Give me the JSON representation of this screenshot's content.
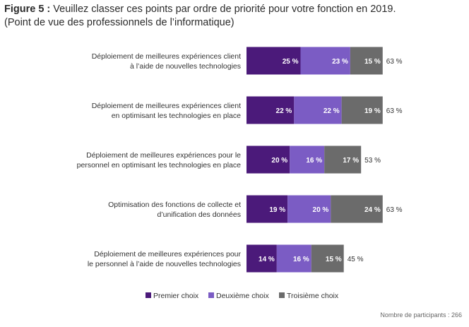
{
  "header": {
    "figure_label": "Figure 5 :",
    "title_rest": " Veuillez classer ces points par ordre de priorité pour votre fonction en 2019.",
    "subtitle": "(Point de vue des professionnels de l’informatique)"
  },
  "footer": {
    "note": "Nombre de participants : 266"
  },
  "chart_data": {
    "type": "bar",
    "orientation": "horizontal",
    "stacked": true,
    "categories": [
      [
        "Déploiement de meilleures expériences client",
        "à l’aide de nouvelles technologies"
      ],
      [
        "Déploiement de meilleures expériences client",
        "en optimisant les technologies en place"
      ],
      [
        "Déploiement de meilleures expériences pour le",
        "personnel en optimisant les technologies en place"
      ],
      [
        "Optimisation des fonctions de collecte et",
        "d’unification des données"
      ],
      [
        "Déploiement de meilleures expériences pour",
        "le personnel à l’aide de nouvelles technologies"
      ]
    ],
    "series": [
      {
        "name": "Premier choix",
        "color": "#4b1a7a",
        "values": [
          25,
          22,
          20,
          19,
          14
        ]
      },
      {
        "name": "Deuxième choix",
        "color": "#7b5cc4",
        "values": [
          23,
          22,
          16,
          20,
          16
        ]
      },
      {
        "name": "Troisième choix",
        "color": "#6b6b6b",
        "values": [
          15,
          19,
          17,
          24,
          15
        ]
      }
    ],
    "value_labels": [
      [
        "25 %",
        "23 %",
        "15 %"
      ],
      [
        "22 %",
        "22 %",
        "19 %"
      ],
      [
        "20 %",
        "16 %",
        "17 %"
      ],
      [
        "19 %",
        "20 %",
        "24 %"
      ],
      [
        "14 %",
        "16 %",
        "15 %"
      ]
    ],
    "totals": [
      63,
      63,
      53,
      63,
      45
    ],
    "total_labels": [
      "63 %",
      "63 %",
      "53 %",
      "63 %",
      "45 %"
    ],
    "xlim": [
      0,
      66
    ],
    "grid": false,
    "legend_position": "bottom"
  }
}
